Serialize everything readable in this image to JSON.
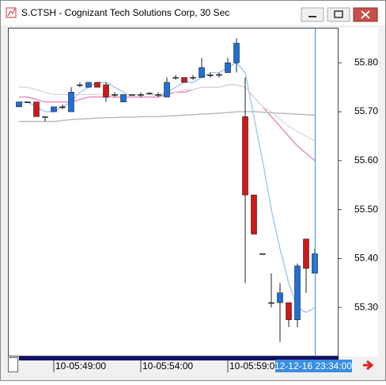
{
  "chart_data": {
    "type": "candlestick",
    "title": "S.CTSH - Cognizant Tech Solutions Corp, 30 Sec",
    "categories": [
      null,
      null,
      null,
      null,
      "10-05:49:00",
      null,
      null,
      null,
      null,
      null,
      null,
      null,
      null,
      null,
      "10-05:54:00",
      null,
      null,
      null,
      null,
      null,
      null,
      null,
      null,
      null,
      "10-05:59:00",
      null,
      null,
      null,
      null,
      null,
      null,
      null,
      null,
      null,
      null
    ],
    "cursor_label": "12-12-16 23:34:00",
    "open": [
      55.71,
      55.72,
      55.72,
      55.69,
      55.7,
      55.71,
      55.7,
      55.755,
      55.75,
      55.76,
      55.755,
      55.735,
      55.72,
      55.735,
      55.735,
      55.738,
      55.735,
      55.73,
      55.77,
      55.77,
      55.77,
      55.77,
      55.775,
      55.776,
      55.78,
      55.8,
      55.69,
      55.53,
      55.41,
      55.31,
      55.31,
      55.31,
      55.275,
      55.44,
      55.37
    ],
    "high": [
      55.72,
      55.72,
      55.72,
      55.69,
      55.71,
      55.715,
      55.75,
      55.76,
      55.76,
      55.76,
      55.76,
      55.74,
      55.735,
      55.735,
      55.74,
      55.74,
      55.74,
      55.77,
      55.775,
      55.77,
      55.775,
      55.81,
      55.78,
      55.78,
      55.81,
      55.85,
      55.77,
      55.53,
      55.41,
      55.37,
      55.35,
      55.31,
      55.39,
      55.44,
      55.42
    ],
    "low": [
      55.71,
      55.72,
      55.69,
      55.68,
      55.7,
      55.705,
      55.7,
      55.75,
      55.75,
      55.75,
      55.72,
      55.73,
      55.72,
      55.735,
      55.73,
      55.735,
      55.73,
      55.73,
      55.765,
      55.76,
      55.765,
      55.77,
      55.77,
      55.77,
      55.78,
      55.78,
      55.35,
      55.45,
      55.41,
      55.3,
      55.23,
      55.26,
      55.26,
      55.33,
      55.37
    ],
    "close": [
      55.72,
      55.72,
      55.69,
      55.69,
      55.71,
      55.71,
      55.74,
      55.755,
      55.76,
      55.75,
      55.73,
      55.735,
      55.735,
      55.735,
      55.735,
      55.738,
      55.735,
      55.76,
      55.77,
      55.76,
      55.77,
      55.79,
      55.775,
      55.776,
      55.8,
      55.84,
      55.53,
      55.45,
      55.41,
      55.31,
      55.33,
      55.275,
      55.385,
      55.38,
      55.41
    ],
    "up_color": "#1f6fd6",
    "down_color": "#d01818",
    "flat_color": "#222222",
    "ylim": [
      55.2,
      55.87
    ],
    "yticks": [
      {
        "value": 55.3,
        "label": "55.30"
      },
      {
        "value": 55.4,
        "label": "55.40"
      },
      {
        "value": 55.5,
        "label": "55.50"
      },
      {
        "value": 55.6,
        "label": "55.60"
      },
      {
        "value": 55.7,
        "label": "55.70"
      },
      {
        "value": 55.8,
        "label": "55.80"
      }
    ],
    "lines": [
      {
        "color": "#a9c9ec",
        "values": [
          55.72,
          55.72,
          55.71,
          55.7,
          55.7,
          55.71,
          55.72,
          55.74,
          55.75,
          55.76,
          55.76,
          55.75,
          55.74,
          55.73,
          55.73,
          55.73,
          55.73,
          55.74,
          55.75,
          55.76,
          55.76,
          55.77,
          55.78,
          55.78,
          55.79,
          55.8,
          55.78,
          55.69,
          55.6,
          55.5,
          55.42,
          55.35,
          55.3,
          55.29,
          55.3
        ]
      },
      {
        "color": "#f08cc0",
        "values": [
          55.73,
          55.73,
          55.725,
          55.72,
          55.72,
          55.72,
          55.72,
          55.725,
          55.73,
          55.73,
          55.73,
          55.73,
          55.73,
          55.73,
          55.73,
          55.73,
          55.73,
          55.735,
          55.74,
          55.74,
          55.745,
          55.75,
          55.75,
          55.75,
          55.755,
          55.755,
          55.75,
          55.73,
          55.71,
          55.69,
          55.67,
          55.65,
          55.63,
          55.615,
          55.6
        ]
      },
      {
        "color": "#dddddd",
        "values": [
          55.75,
          55.75,
          55.745,
          55.74,
          55.735,
          55.735,
          55.735,
          55.735,
          55.735,
          55.735,
          55.735,
          55.735,
          55.735,
          55.735,
          55.735,
          55.735,
          55.735,
          55.74,
          55.74,
          55.745,
          55.745,
          55.75,
          55.75,
          55.75,
          55.755,
          55.755,
          55.75,
          55.73,
          55.71,
          55.7,
          55.685,
          55.67,
          55.66,
          55.65,
          55.64
        ]
      },
      {
        "color": "#bbbbbb",
        "values": [
          55.68,
          55.68,
          55.68,
          55.68,
          55.68,
          55.682,
          55.684,
          55.685,
          55.686,
          55.687,
          55.688,
          55.688,
          55.689,
          55.689,
          55.69,
          55.69,
          55.69,
          55.691,
          55.692,
          55.693,
          55.694,
          55.695,
          55.696,
          55.697,
          55.698,
          55.7,
          55.7,
          55.7,
          55.699,
          55.698,
          55.697,
          55.696,
          55.695,
          55.694,
          55.693
        ]
      }
    ]
  }
}
